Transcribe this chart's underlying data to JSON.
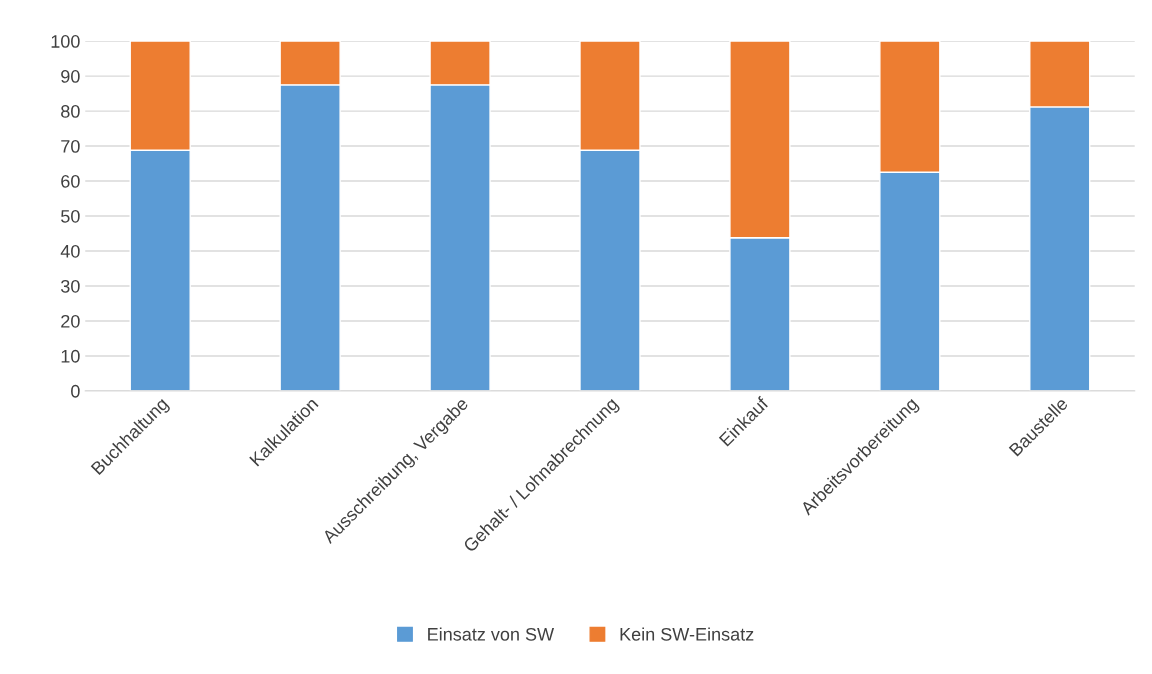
{
  "chart_data": {
    "type": "bar",
    "stacked": true,
    "categories": [
      "Buchhaltung",
      "Kalkulation",
      "Ausschreibung, Vergabe",
      "Gehalt- / Lohnabrechnung",
      "Einkauf",
      "Arbeitsvorbereitung",
      "Baustelle"
    ],
    "series": [
      {
        "name": "Einsatz von SW",
        "color": "#5b9bd5",
        "values": [
          68.8,
          87.5,
          87.5,
          68.8,
          43.8,
          62.5,
          81.2
        ]
      },
      {
        "name": "Kein SW-Einsatz",
        "color": "#ed7d31",
        "values": [
          31.2,
          12.5,
          12.5,
          31.2,
          56.2,
          37.5,
          18.8
        ]
      }
    ],
    "ylim": [
      0,
      100
    ],
    "yticks": [
      0,
      10,
      20,
      30,
      40,
      50,
      60,
      70,
      80,
      90,
      100
    ],
    "grid": "y",
    "legend": "bottom"
  }
}
